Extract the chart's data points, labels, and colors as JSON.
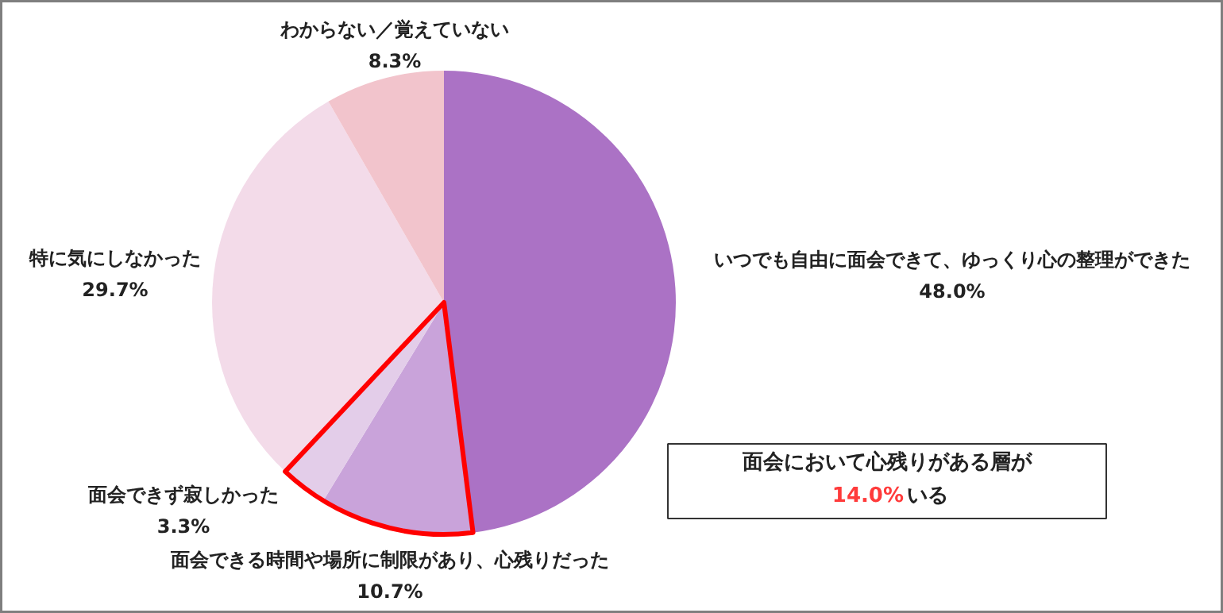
{
  "chart_data": {
    "type": "pie",
    "categories": [
      "いつでも自由に面会できて、ゆっくり心の整理ができた",
      "面会できる時間や場所に制限があり、心残りだった",
      "面会できず寂しかった",
      "特に気にしなかった",
      "わからない／覚えていない"
    ],
    "values": [
      48.0,
      10.7,
      3.3,
      29.7,
      8.3
    ],
    "colors": [
      "#ab72c5",
      "#c9a3da",
      "#e3cde9",
      "#f3dbe9",
      "#f2c4cc"
    ],
    "value_labels": [
      "48.0%",
      "10.7%",
      "3.3%",
      "29.7%",
      "8.3%"
    ],
    "annotations": [
      "面会において心残りがある層が",
      "14.0%いる"
    ]
  }
}
